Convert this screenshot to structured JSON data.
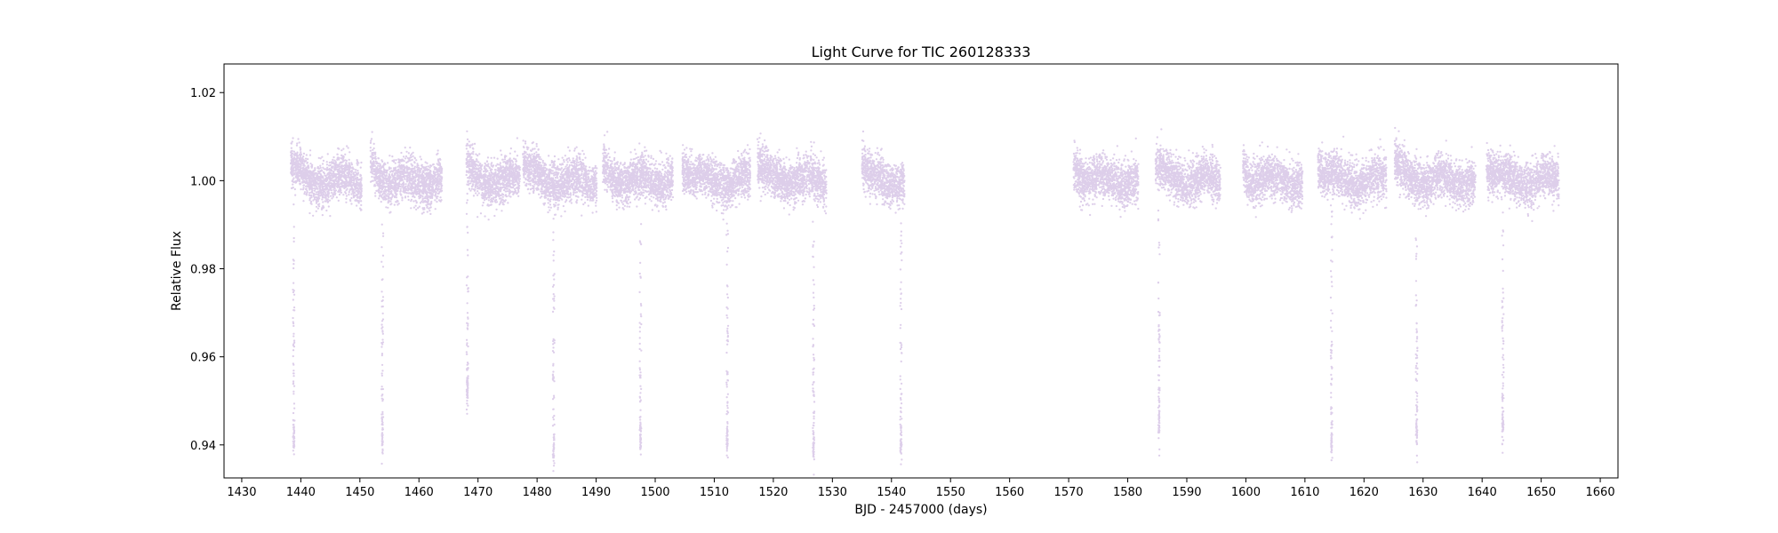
{
  "chart_data": {
    "type": "scatter",
    "title": "Light Curve for TIC 260128333",
    "xlabel": "BJD - 2457000 (days)",
    "ylabel": "Relative Flux",
    "xlim": [
      1427,
      1663
    ],
    "ylim": [
      0.9325,
      1.0265
    ],
    "xticks": [
      1430,
      1440,
      1450,
      1460,
      1470,
      1480,
      1490,
      1500,
      1510,
      1520,
      1530,
      1540,
      1550,
      1560,
      1570,
      1580,
      1590,
      1600,
      1610,
      1620,
      1630,
      1640,
      1650,
      1660
    ],
    "yticks": [
      0.94,
      0.96,
      0.98,
      1.0,
      1.02
    ],
    "ytick_labels": [
      "0.94",
      "0.96",
      "0.98",
      "1.00",
      "1.02"
    ],
    "grid": false,
    "legend": "none",
    "series_color": "#9467bd",
    "segments": [
      {
        "x_start": 1438.3,
        "x_end": 1450.3
      },
      {
        "x_start": 1451.8,
        "x_end": 1463.9
      },
      {
        "x_start": 1468.0,
        "x_end": 1477.1
      },
      {
        "x_start": 1477.6,
        "x_end": 1490.1
      },
      {
        "x_start": 1491.1,
        "x_end": 1503.0
      },
      {
        "x_start": 1504.6,
        "x_end": 1516.1
      },
      {
        "x_start": 1517.3,
        "x_end": 1529.0
      },
      {
        "x_start": 1535.0,
        "x_end": 1542.2
      },
      {
        "x_start": 1570.8,
        "x_end": 1581.8
      },
      {
        "x_start": 1584.7,
        "x_end": 1595.7
      },
      {
        "x_start": 1599.5,
        "x_end": 1609.6
      },
      {
        "x_start": 1612.2,
        "x_end": 1623.8
      },
      {
        "x_start": 1625.2,
        "x_end": 1638.9
      },
      {
        "x_start": 1640.7,
        "x_end": 1653.0
      }
    ],
    "transits": [
      {
        "x": 1438.8,
        "depth_min": 0.937
      },
      {
        "x": 1453.8,
        "depth_min": 0.938
      },
      {
        "x": 1468.2,
        "depth_min": 0.948
      },
      {
        "x": 1482.8,
        "depth_min": 0.935
      },
      {
        "x": 1497.5,
        "depth_min": 0.937
      },
      {
        "x": 1512.2,
        "depth_min": 0.937
      },
      {
        "x": 1526.8,
        "depth_min": 0.935
      },
      {
        "x": 1541.6,
        "depth_min": 0.936
      },
      {
        "x": 1585.3,
        "depth_min": 0.941
      },
      {
        "x": 1614.5,
        "depth_min": 0.936
      },
      {
        "x": 1628.9,
        "depth_min": 0.938
      },
      {
        "x": 1643.5,
        "depth_min": 0.941
      }
    ]
  }
}
